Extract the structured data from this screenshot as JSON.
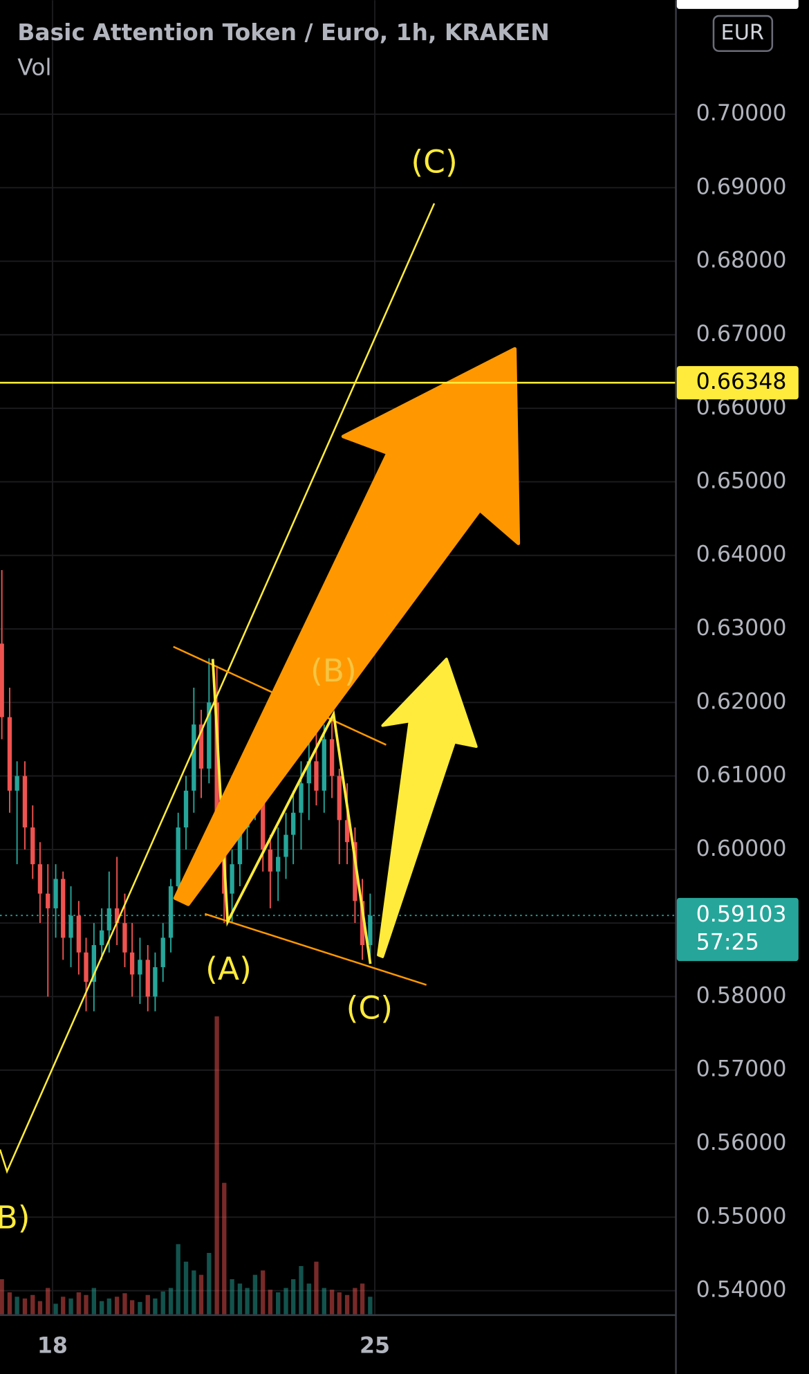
{
  "chart_data": {
    "type": "candlestick",
    "title": "Basic Attention Token / Euro, 1h, KRAKEN",
    "volume_label": "Vol",
    "currency": "EUR",
    "x": [
      16.9,
      17.07,
      17.23,
      17.4,
      17.57,
      17.73,
      17.9,
      18.07,
      18.23,
      18.4,
      18.57,
      18.73,
      18.9,
      19.07,
      19.23,
      19.4,
      19.57,
      19.73,
      19.9,
      20.07,
      20.23,
      20.4,
      20.57,
      20.73,
      20.9,
      21.07,
      21.23,
      21.4,
      21.57,
      21.73,
      21.9,
      22.07,
      22.23,
      22.4,
      22.57,
      22.73,
      22.9,
      23.07,
      23.23,
      23.4,
      23.57,
      23.73,
      23.9,
      24.07,
      24.23,
      24.4,
      24.57,
      24.73,
      24.9
    ],
    "open": [
      0.628,
      0.618,
      0.608,
      0.61,
      0.603,
      0.598,
      0.594,
      0.592,
      0.596,
      0.588,
      0.591,
      0.586,
      0.582,
      0.587,
      0.589,
      0.592,
      0.59,
      0.586,
      0.583,
      0.585,
      0.58,
      0.584,
      0.588,
      0.595,
      0.603,
      0.608,
      0.617,
      0.611,
      0.62,
      0.602,
      0.594,
      0.598,
      0.603,
      0.607,
      0.609,
      0.6,
      0.597,
      0.599,
      0.602,
      0.605,
      0.609,
      0.612,
      0.608,
      0.615,
      0.61,
      0.604,
      0.601,
      0.593,
      0.587
    ],
    "high": [
      0.638,
      0.622,
      0.612,
      0.612,
      0.606,
      0.601,
      0.598,
      0.598,
      0.597,
      0.595,
      0.593,
      0.588,
      0.59,
      0.592,
      0.597,
      0.599,
      0.594,
      0.59,
      0.588,
      0.587,
      0.586,
      0.59,
      0.596,
      0.605,
      0.61,
      0.622,
      0.619,
      0.626,
      0.625,
      0.606,
      0.6,
      0.606,
      0.61,
      0.615,
      0.614,
      0.602,
      0.603,
      0.605,
      0.608,
      0.612,
      0.617,
      0.616,
      0.617,
      0.618,
      0.611,
      0.609,
      0.603,
      0.596,
      0.594
    ],
    "low": [
      0.615,
      0.605,
      0.598,
      0.6,
      0.596,
      0.59,
      0.58,
      0.588,
      0.585,
      0.584,
      0.583,
      0.578,
      0.578,
      0.585,
      0.586,
      0.587,
      0.584,
      0.58,
      0.579,
      0.578,
      0.578,
      0.582,
      0.586,
      0.593,
      0.6,
      0.605,
      0.607,
      0.609,
      0.598,
      0.59,
      0.59,
      0.595,
      0.6,
      0.604,
      0.597,
      0.592,
      0.593,
      0.596,
      0.598,
      0.6,
      0.604,
      0.606,
      0.605,
      0.607,
      0.598,
      0.598,
      0.59,
      0.585,
      0.585
    ],
    "close": [
      0.618,
      0.608,
      0.61,
      0.603,
      0.598,
      0.594,
      0.592,
      0.596,
      0.588,
      0.591,
      0.586,
      0.582,
      0.587,
      0.589,
      0.592,
      0.59,
      0.586,
      0.583,
      0.585,
      0.58,
      0.584,
      0.588,
      0.595,
      0.603,
      0.608,
      0.617,
      0.611,
      0.62,
      0.602,
      0.594,
      0.598,
      0.603,
      0.607,
      0.609,
      0.6,
      0.597,
      0.599,
      0.602,
      0.605,
      0.609,
      0.612,
      0.608,
      0.615,
      0.61,
      0.604,
      0.601,
      0.593,
      0.587,
      0.591
    ],
    "volume": [
      40,
      25,
      20,
      18,
      22,
      15,
      30,
      12,
      20,
      18,
      25,
      22,
      30,
      15,
      18,
      20,
      24,
      16,
      14,
      22,
      18,
      26,
      30,
      80,
      60,
      50,
      45,
      70,
      340,
      150,
      40,
      35,
      30,
      45,
      50,
      28,
      25,
      30,
      40,
      55,
      35,
      60,
      30,
      28,
      25,
      22,
      30,
      35,
      20
    ],
    "up_color": "#26a69a",
    "down_color": "#ef5350",
    "xlim": [
      16.86,
      31.54
    ],
    "xticks": [
      18,
      25
    ],
    "ylim": [
      0.5368,
      0.7155
    ],
    "yticks": [
      {
        "value": 0.54,
        "label": "0.54000"
      },
      {
        "value": 0.55,
        "label": "0.55000"
      },
      {
        "value": 0.56,
        "label": "0.56000"
      },
      {
        "value": 0.57,
        "label": "0.57000"
      },
      {
        "value": 0.58,
        "label": "0.58000"
      },
      {
        "value": 0.59,
        "label": "0.59000"
      },
      {
        "value": 0.6,
        "label": "0.60000"
      },
      {
        "value": 0.61,
        "label": "0.61000"
      },
      {
        "value": 0.62,
        "label": "0.62000"
      },
      {
        "value": 0.63,
        "label": "0.63000"
      },
      {
        "value": 0.64,
        "label": "0.64000"
      },
      {
        "value": 0.65,
        "label": "0.65000"
      },
      {
        "value": 0.66,
        "label": "0.66000"
      },
      {
        "value": 0.67,
        "label": "0.67000"
      },
      {
        "value": 0.68,
        "label": "0.68000"
      },
      {
        "value": 0.69,
        "label": "0.69000"
      },
      {
        "value": 0.7,
        "label": "0.70000"
      }
    ],
    "grid": true,
    "horizontal_line": {
      "value": 0.66348,
      "color": "#ffeb3b"
    },
    "last_price": {
      "value": 0.59103,
      "countdown": "57:25",
      "color": "#26a69a"
    },
    "wave_labels": [
      "(C)",
      "(B)",
      "(A)",
      "(C)",
      "B)"
    ]
  }
}
